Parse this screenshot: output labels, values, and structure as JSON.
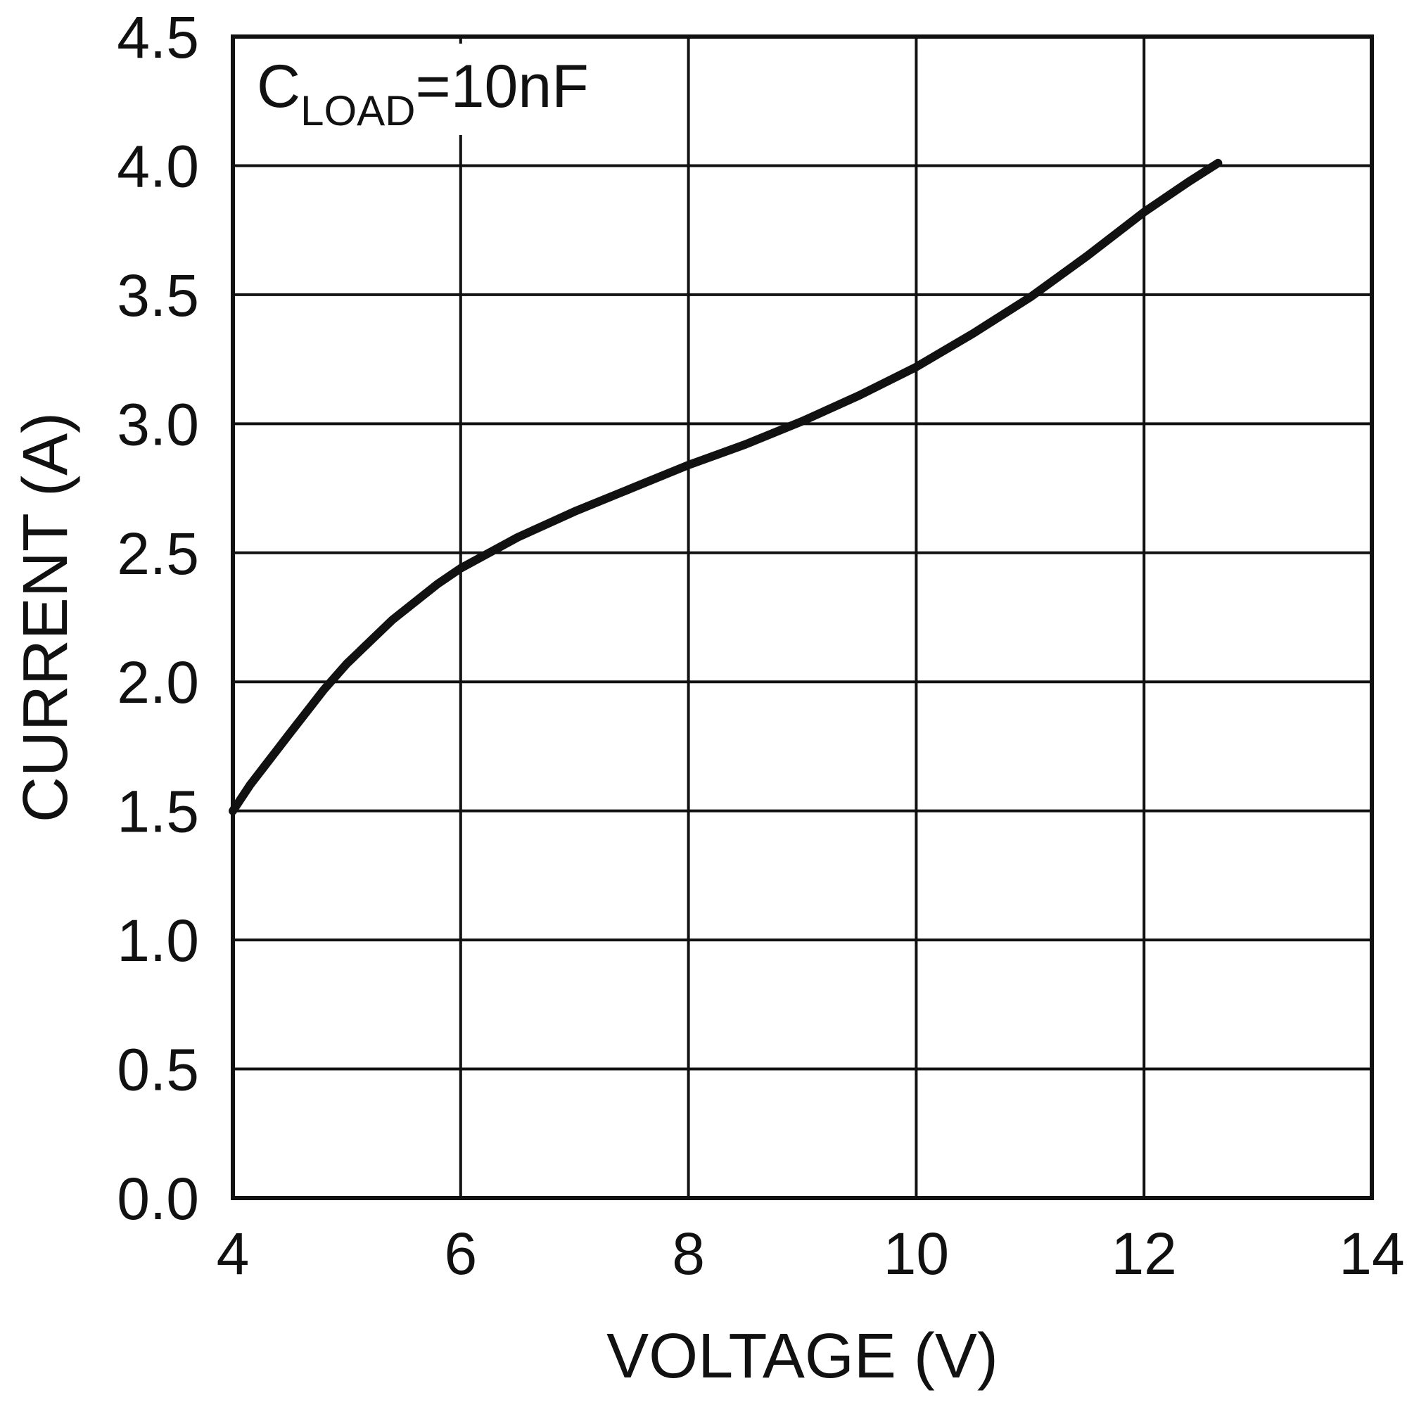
{
  "chart_data": {
    "type": "line",
    "title": "",
    "xlabel": "VOLTAGE (V)",
    "ylabel": "CURRENT (A)",
    "xlim": [
      4,
      14
    ],
    "ylim": [
      0,
      4.5
    ],
    "x_ticks": [
      "4",
      "6",
      "8",
      "10",
      "12",
      "14"
    ],
    "y_ticks": [
      "0.0",
      "0.5",
      "1.0",
      "1.5",
      "2.0",
      "2.5",
      "3.0",
      "3.5",
      "4.0",
      "4.5"
    ],
    "grid": true,
    "annotation": {
      "main": "C",
      "subscript": "LOAD",
      "suffix": "=10nF"
    },
    "series": [
      {
        "x": [
          4.0,
          4.15,
          4.5,
          4.8,
          5.0,
          5.4,
          5.8,
          6.0,
          6.5,
          7.0,
          7.5,
          8.0,
          8.5,
          9.0,
          9.5,
          10.0,
          10.5,
          11.0,
          11.5,
          12.0,
          12.4,
          12.65
        ],
        "y": [
          1.5,
          1.6,
          1.8,
          1.97,
          2.07,
          2.24,
          2.38,
          2.44,
          2.56,
          2.66,
          2.75,
          2.84,
          2.92,
          3.01,
          3.11,
          3.22,
          3.35,
          3.49,
          3.65,
          3.82,
          3.94,
          4.01
        ]
      }
    ]
  }
}
